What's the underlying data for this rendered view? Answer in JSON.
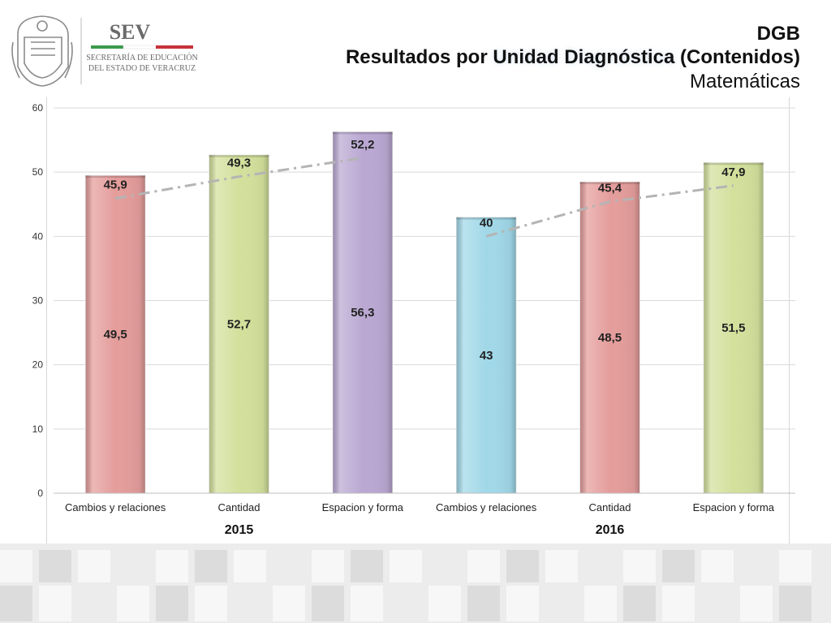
{
  "header": {
    "logo_brand": "SEV",
    "logo_org_line1": "SECRETARÍA DE EDUCACIÓN",
    "logo_org_line2": "DEL ESTADO DE VERACRUZ",
    "title_line1": "DGB",
    "title_line2_prefix": "Resultados por ",
    "title_line2_highlight": "Unidad Diagnóstica",
    "title_line2_suffix": " (Contenidos)",
    "title_line3": "Matemáticas"
  },
  "colors": {
    "red_bar": "#e49d9b",
    "green_bar": "#d3e09c",
    "purple_bar": "#baa8d2",
    "blue_bar": "#a1d8e8",
    "trend_line": "#b4b4b4",
    "grid": "#d9d9d9"
  },
  "chart_data": {
    "type": "bar",
    "categories": [
      "Cambios y relaciones",
      "Cantidad",
      "Espacion y forma",
      "Cambios y relaciones",
      "Cantidad",
      "Espacion y forma"
    ],
    "group_labels": [
      {
        "label": "2015",
        "span": [
          0,
          2
        ]
      },
      {
        "label": "2016",
        "span": [
          3,
          5
        ]
      }
    ],
    "series": [
      {
        "values": [
          49.5,
          52.7,
          56.3,
          43,
          48.5,
          51.5
        ],
        "value_labels": [
          "49,5",
          "52,7",
          "56,3",
          "43",
          "48,5",
          "51,5"
        ],
        "colors": [
          "#e49d9b",
          "#d3e09c",
          "#baa8d2",
          "#a1d8e8",
          "#e49d9b",
          "#d3e09c"
        ]
      },
      {
        "type": "line",
        "style": "dash-dot",
        "values": [
          45.9,
          49.3,
          52.2,
          40,
          45.4,
          47.9
        ],
        "value_labels": [
          "45,9",
          "49,3",
          "52,2",
          "40",
          "45,4",
          "47,9"
        ]
      }
    ],
    "ylim": [
      0,
      60
    ],
    "yticks": [
      0,
      10,
      20,
      30,
      40,
      50,
      60
    ],
    "grid": true,
    "legend": "none"
  }
}
